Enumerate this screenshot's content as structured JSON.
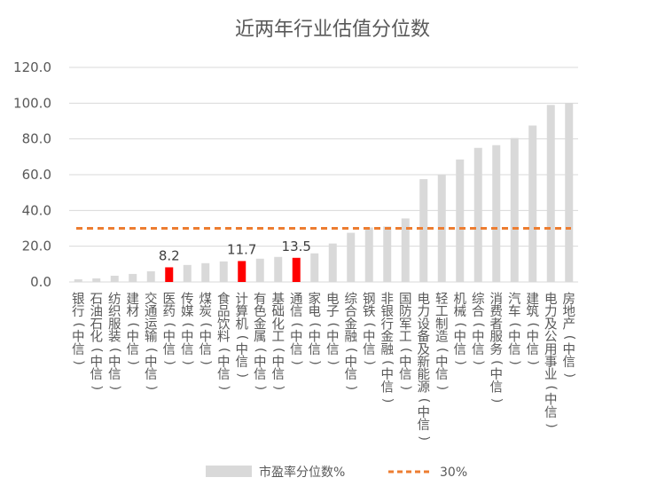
{
  "chart_data": {
    "type": "bar",
    "title": "近两年行业估值分位数",
    "categories": [
      "银行(中信)",
      "石油石化(中信)",
      "纺织服装(中信)",
      "建材(中信)",
      "交通运输(中信)",
      "医药(中信)",
      "传媒(中信)",
      "煤炭(中信)",
      "食品饮料(中信)",
      "计算机(中信)",
      "有色金属(中信)",
      "基础化工(中信)",
      "通信(中信)",
      "家电(中信)",
      "电子(中信)",
      "综合金融(中信)",
      "钢铁(中信)",
      "非银行金融(中信)",
      "国防军工(中信)",
      "电力设备及新能源(中信)",
      "轻工制造(中信)",
      "机械(中信)",
      "综合(中信)",
      "消费者服务(中信)",
      "汽车(中信)",
      "建筑(中信)",
      "电力及公用事业(中信)",
      "房地产(中信)"
    ],
    "series": [
      {
        "name": "市盈率分位数%",
        "values": [
          1.5,
          2,
          3.5,
          4.5,
          6,
          8.2,
          9.5,
          10.5,
          11.5,
          11.7,
          13,
          14,
          13.5,
          16,
          21.5,
          27.5,
          30.5,
          31,
          35.5,
          57.5,
          60,
          68.5,
          75,
          76.5,
          80.5,
          87.5,
          99,
          100
        ],
        "color": "#d9d9d9"
      }
    ],
    "highlight": {
      "indices": [
        5,
        9,
        12
      ],
      "color": "#ff0000",
      "labels": [
        "8.2",
        "11.7",
        "13.5"
      ]
    },
    "reference_line": {
      "name": "30%",
      "value": 30,
      "color": "#ed7d31",
      "style": "dashed"
    },
    "yaxis": {
      "ylim": [
        0,
        120
      ],
      "ticks": [
        "0.0",
        "20.0",
        "40.0",
        "60.0",
        "80.0",
        "100.0",
        "120.0"
      ]
    },
    "grid": true,
    "legend": "bottom"
  }
}
